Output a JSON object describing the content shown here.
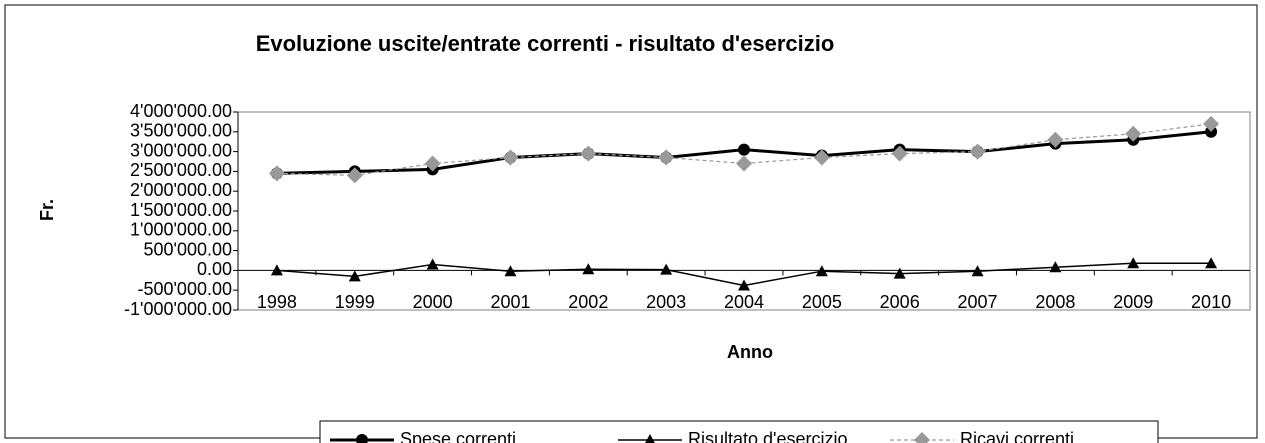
{
  "chart_data": {
    "type": "line",
    "title": "Evoluzione uscite/entrate correnti - risultato d'esercizio",
    "x_label": "Anno",
    "y_label": "Fr.",
    "categories": [
      "1998",
      "1999",
      "2000",
      "2001",
      "2002",
      "2003",
      "2004",
      "2005",
      "2006",
      "2007",
      "2008",
      "2009",
      "2010"
    ],
    "series": [
      {
        "name": "Spese correnti",
        "color": "#000000",
        "marker": "circle",
        "line_style": "solid",
        "values": [
          2450000,
          2500000,
          2550000,
          2850000,
          2950000,
          2850000,
          3050000,
          2900000,
          3050000,
          3000000,
          3200000,
          3300000,
          3500000
        ]
      },
      {
        "name": "Risultato d'esercizio",
        "color": "#000000",
        "marker": "triangle",
        "line_style": "solid",
        "values": [
          0,
          -150000,
          150000,
          -20000,
          30000,
          20000,
          -380000,
          -20000,
          -80000,
          -20000,
          80000,
          180000,
          180000
        ]
      },
      {
        "name": "Ricavi correnti",
        "color": "#999999",
        "marker": "diamond",
        "line_style": "dashed",
        "values": [
          2450000,
          2400000,
          2700000,
          2850000,
          2950000,
          2850000,
          2700000,
          2850000,
          2950000,
          3000000,
          3300000,
          3450000,
          3700000
        ]
      }
    ],
    "ylim": [
      -1000000,
      4000000
    ],
    "yticks": [
      {
        "value": 4000000,
        "label": "4'000'000.00"
      },
      {
        "value": 3500000,
        "label": "3'500'000.00"
      },
      {
        "value": 3000000,
        "label": "3'000'000.00"
      },
      {
        "value": 2500000,
        "label": "2'500'000.00"
      },
      {
        "value": 2000000,
        "label": "2'000'000.00"
      },
      {
        "value": 1500000,
        "label": "1'500'000.00"
      },
      {
        "value": 1000000,
        "label": "1'000'000.00"
      },
      {
        "value": 500000,
        "label": "500'000.00"
      },
      {
        "value": 0,
        "label": "0.00"
      },
      {
        "value": -500000,
        "label": "-500'000.00"
      },
      {
        "value": -1000000,
        "label": "-1'000'000.00"
      }
    ],
    "grid": false,
    "legend": "bottom"
  }
}
